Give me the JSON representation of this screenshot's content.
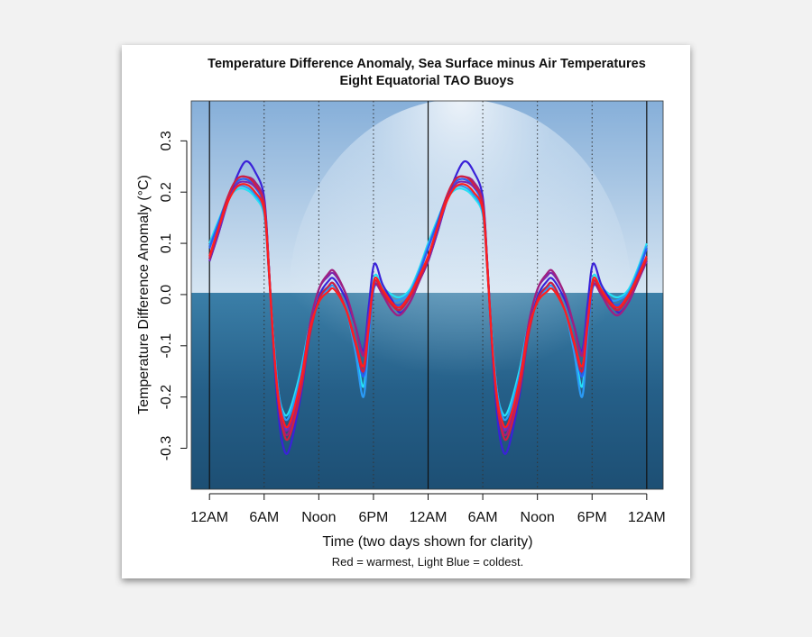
{
  "chart_data": {
    "type": "line",
    "title": "Temperature Difference Anomaly, Sea Surface minus Air Temperatures",
    "subtitle": "Eight Equatorial TAO Buoys",
    "xlabel": "Time (two days shown for clarity)",
    "ylabel": "Temperature Difference Anomaly (°C)",
    "note": "Red = warmest, Light Blue = coldest.",
    "x_unit": "hours after midnight (day repeated twice)",
    "xlim": [
      -2,
      49.8
    ],
    "ylim": [
      -0.38,
      0.378
    ],
    "x_ticks": [
      {
        "hour": 0,
        "label": "12AM"
      },
      {
        "hour": 6,
        "label": "6AM"
      },
      {
        "hour": 12,
        "label": "Noon"
      },
      {
        "hour": 18,
        "label": "6PM"
      },
      {
        "hour": 24,
        "label": "12AM"
      },
      {
        "hour": 30,
        "label": "6AM"
      },
      {
        "hour": 36,
        "label": "Noon"
      },
      {
        "hour": 42,
        "label": "6PM"
      },
      {
        "hour": 48,
        "label": "12AM"
      }
    ],
    "y_ticks": [
      {
        "value": 0.3,
        "label": "0.3"
      },
      {
        "value": 0.2,
        "label": "0.2"
      },
      {
        "value": 0.1,
        "label": "0.1"
      },
      {
        "value": 0.0,
        "label": "0.0"
      },
      {
        "value": -0.1,
        "label": "-0.1"
      },
      {
        "value": -0.2,
        "label": "-0.2"
      },
      {
        "value": -0.3,
        "label": "-0.3"
      }
    ],
    "solid_vlines_hours": [
      0,
      24,
      48
    ],
    "dotted_vlines_hours": [
      6,
      12,
      18,
      30,
      36,
      42
    ],
    "hours": [
      0,
      1,
      2,
      3,
      4,
      5,
      6,
      6.5,
      7,
      7.5,
      8,
      8.7,
      10,
      11,
      12,
      13,
      13.7,
      15,
      16,
      16.9,
      17.5,
      18.1,
      19,
      20,
      20.9,
      22,
      23,
      24
    ],
    "series": [
      {
        "color": "#25e0f5",
        "values": [
          0.1,
          0.145,
          0.185,
          0.205,
          0.205,
          0.19,
          0.155,
          0.05,
          -0.08,
          -0.18,
          -0.225,
          -0.23,
          -0.15,
          -0.06,
          -0.005,
          0.015,
          0.02,
          -0.03,
          -0.1,
          -0.18,
          -0.07,
          0.035,
          0.015,
          0.0,
          -0.005,
          0.01,
          0.05,
          0.1
        ]
      },
      {
        "color": "#2a9af5",
        "values": [
          0.095,
          0.14,
          0.185,
          0.21,
          0.21,
          0.195,
          0.16,
          0.05,
          -0.08,
          -0.18,
          -0.23,
          -0.24,
          -0.16,
          -0.06,
          -0.01,
          0.01,
          0.015,
          -0.03,
          -0.11,
          -0.2,
          -0.08,
          0.02,
          0.01,
          -0.01,
          -0.01,
          0.005,
          0.045,
          0.095
        ]
      },
      {
        "color": "#2a5cf0",
        "values": [
          0.09,
          0.14,
          0.19,
          0.22,
          0.225,
          0.21,
          0.17,
          0.05,
          -0.09,
          -0.19,
          -0.24,
          -0.26,
          -0.17,
          -0.07,
          -0.01,
          0.015,
          0.02,
          -0.03,
          -0.09,
          -0.16,
          -0.07,
          0.015,
          0.005,
          -0.015,
          -0.02,
          0.0,
          0.04,
          0.09
        ]
      },
      {
        "color": "#3a22d8",
        "values": [
          0.065,
          0.12,
          0.18,
          0.23,
          0.26,
          0.24,
          0.19,
          0.06,
          -0.1,
          -0.22,
          -0.29,
          -0.305,
          -0.2,
          -0.08,
          -0.005,
          0.025,
          0.03,
          -0.01,
          -0.06,
          -0.11,
          -0.02,
          0.06,
          0.02,
          -0.01,
          -0.035,
          -0.015,
          0.025,
          0.065
        ]
      },
      {
        "color": "#7a2ab0",
        "values": [
          0.065,
          0.12,
          0.18,
          0.215,
          0.22,
          0.21,
          0.18,
          0.06,
          -0.09,
          -0.2,
          -0.25,
          -0.26,
          -0.17,
          -0.06,
          0.01,
          0.035,
          0.04,
          0.0,
          -0.06,
          -0.115,
          -0.04,
          0.02,
          0.0,
          -0.03,
          -0.04,
          -0.015,
          0.025,
          0.065
        ]
      },
      {
        "color": "#a02080",
        "values": [
          0.07,
          0.13,
          0.19,
          0.225,
          0.23,
          0.22,
          0.18,
          0.06,
          -0.09,
          -0.2,
          -0.255,
          -0.27,
          -0.18,
          -0.06,
          0.01,
          0.04,
          0.045,
          0.0,
          -0.06,
          -0.12,
          -0.05,
          0.02,
          0.0,
          -0.03,
          -0.04,
          -0.015,
          0.025,
          0.07
        ]
      },
      {
        "color": "#d02040",
        "values": [
          0.07,
          0.13,
          0.19,
          0.225,
          0.23,
          0.215,
          0.175,
          0.06,
          -0.09,
          -0.2,
          -0.26,
          -0.28,
          -0.19,
          -0.08,
          -0.01,
          0.015,
          0.02,
          -0.03,
          -0.095,
          -0.15,
          -0.06,
          0.025,
          0.005,
          -0.02,
          -0.03,
          -0.005,
          0.03,
          0.07
        ]
      },
      {
        "color": "#ff1e1e",
        "values": [
          0.075,
          0.13,
          0.18,
          0.21,
          0.215,
          0.2,
          0.165,
          0.05,
          -0.09,
          -0.19,
          -0.24,
          -0.255,
          -0.17,
          -0.07,
          -0.015,
          0.005,
          0.01,
          -0.03,
          -0.09,
          -0.14,
          -0.06,
          0.03,
          0.01,
          -0.015,
          -0.025,
          0.0,
          0.035,
          0.075
        ]
      }
    ]
  }
}
